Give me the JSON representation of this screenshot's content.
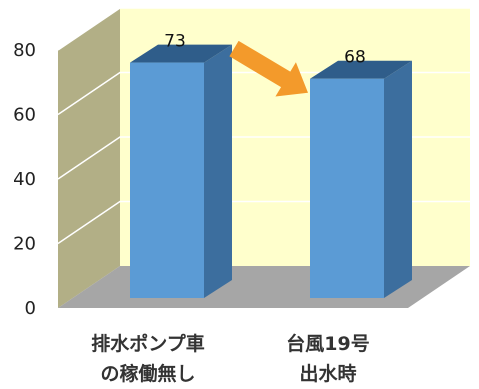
{
  "chart_data": {
    "type": "bar",
    "categories": [
      [
        "排水ポンプ車",
        "の稼働無し"
      ],
      [
        "台風19号",
        "出水時"
      ]
    ],
    "values": [
      73,
      68
    ],
    "data_labels": [
      "73",
      "68"
    ],
    "yticks": [
      "0",
      "20",
      "40",
      "60",
      "80"
    ],
    "ylim": [
      0,
      80
    ],
    "title": "",
    "xlabel": "",
    "ylabel": "",
    "style": "3d-column",
    "gridlines": true,
    "annotation": "orange arrow from first bar to second bar",
    "colors": {
      "bar_front": "#5B9BD5",
      "bar_side": "#3C6E9E",
      "bar_top": "#2F5D8A",
      "back_wall": "#FFFFCC",
      "side_wall": "#B2AF86",
      "floor": "#A6A6A6",
      "grid": "#FFFFFF",
      "arrow": "#F39A2B"
    }
  }
}
